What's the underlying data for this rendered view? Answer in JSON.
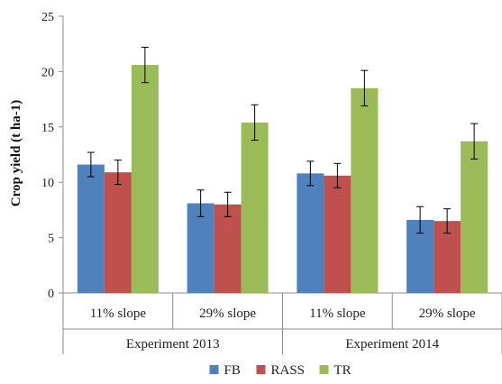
{
  "chart_data": {
    "type": "bar",
    "ylabel": "Crop yield (t ha-1)",
    "ylim": [
      0,
      25
    ],
    "yticks": [
      0,
      5,
      10,
      15,
      20,
      25
    ],
    "categories": [
      "11% slope",
      "29% slope",
      "11% slope",
      "29% slope"
    ],
    "groups": [
      {
        "label": "Experiment 2013",
        "categories": [
          0,
          1
        ]
      },
      {
        "label": "Experiment 2014",
        "categories": [
          2,
          3
        ]
      }
    ],
    "series": [
      {
        "name": "FB",
        "color": "#4f81bd",
        "values": [
          11.6,
          8.1,
          10.8,
          6.6
        ],
        "errors": [
          1.1,
          1.2,
          1.1,
          1.2
        ]
      },
      {
        "name": "RASS",
        "color": "#c0504d",
        "values": [
          10.9,
          8.0,
          10.6,
          6.5
        ],
        "errors": [
          1.1,
          1.1,
          1.1,
          1.1
        ]
      },
      {
        "name": "TR",
        "color": "#9bbb59",
        "values": [
          20.6,
          15.4,
          18.5,
          13.7
        ],
        "errors": [
          1.6,
          1.6,
          1.6,
          1.6
        ]
      }
    ],
    "legend_position": "bottom",
    "grid": false
  }
}
